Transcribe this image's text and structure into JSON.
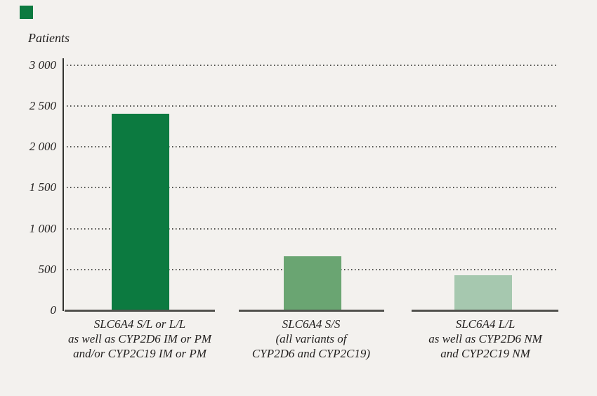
{
  "figure": {
    "background_color": "#f3f1ee",
    "accent_square_color": "#0c7a40"
  },
  "chart_data": {
    "type": "bar",
    "title": "",
    "xlabel": "",
    "ylabel": "Patients",
    "ylim": [
      0,
      3000
    ],
    "ytick_interval": 500,
    "grid": "horizontal dotted gridlines, no gridline at 0",
    "legend_position": "none",
    "ytick_values": [
      3000,
      2500,
      2000,
      1500,
      1000,
      500,
      0
    ],
    "ytick_labels": [
      "3 000",
      "2 500",
      "2 000",
      "1 500",
      "1 000",
      "500",
      "0"
    ],
    "categories": [
      {
        "lines": [
          "SLC6A4 S/L or L/L",
          "as well as CYP2D6 IM or PM",
          "and/or CYP2C19 IM or PM"
        ]
      },
      {
        "lines": [
          "SLC6A4 S/S",
          "(all variants of",
          "CYP2D6 and CYP2C19)"
        ]
      },
      {
        "lines": [
          "SLC6A4 L/L",
          "as well as CYP2D6 NM",
          "and CYP2C19 NM"
        ]
      }
    ],
    "values": [
      2400,
      660,
      430
    ],
    "bar_colors": [
      "#0c7a40",
      "#6aa572",
      "#a6c8af"
    ]
  }
}
